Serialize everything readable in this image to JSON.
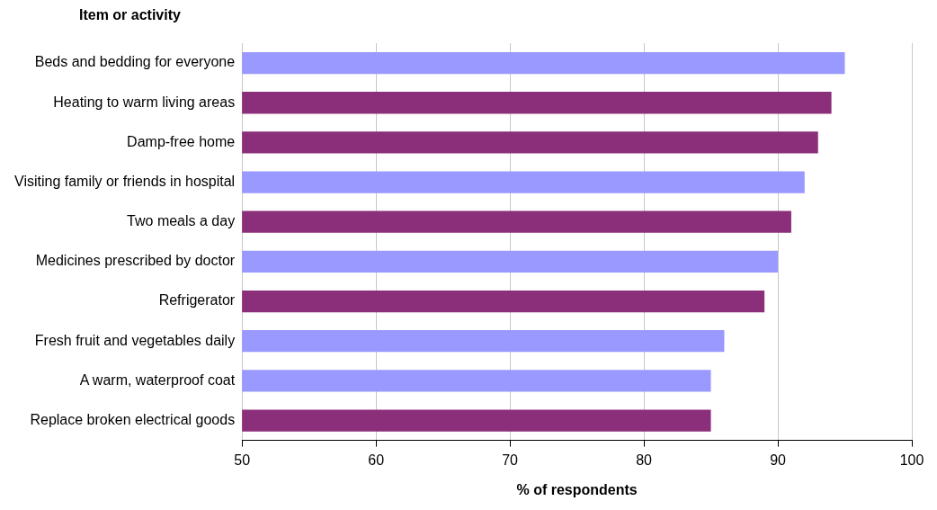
{
  "chart_data": {
    "type": "bar",
    "orientation": "horizontal",
    "ylabel": "Item or activity",
    "xlabel": "% of respondents",
    "categories": [
      "Beds and bedding for everyone",
      "Heating to warm living areas",
      "Damp-free home",
      "Visiting family or friends in hospital",
      "Two meals a day",
      "Medicines prescribed by doctor",
      "Refrigerator",
      "Fresh fruit and vegetables daily",
      "A warm, waterproof coat",
      "Replace broken electrical goods"
    ],
    "values": [
      95,
      94,
      93,
      92,
      91,
      90,
      89,
      86,
      85,
      85
    ],
    "colors": [
      "#9999ff",
      "#8b2f7a",
      "#8b2f7a",
      "#9999ff",
      "#8b2f7a",
      "#9999ff",
      "#8b2f7a",
      "#9999ff",
      "#9999ff",
      "#8b2f7a"
    ],
    "xlim": [
      50,
      100
    ],
    "xticks": [
      50,
      60,
      70,
      80,
      90,
      100
    ],
    "grid": "x",
    "legend": false
  }
}
